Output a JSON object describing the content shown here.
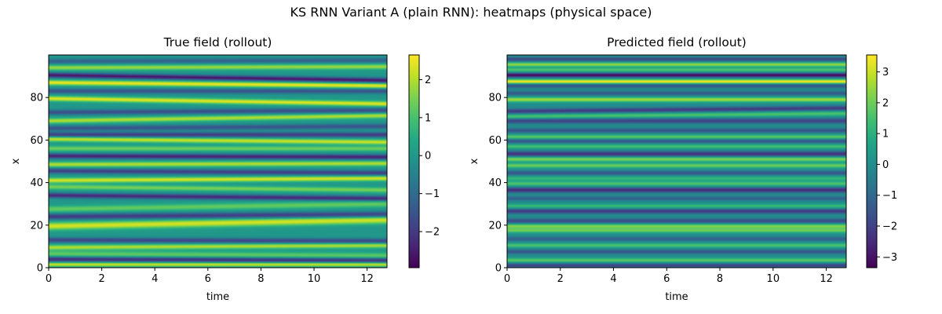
{
  "figure": {
    "suptitle": "KS RNN Variant A (plain RNN): heatmaps (physical space)"
  },
  "chart_data": [
    {
      "type": "heatmap",
      "title": "True field (rollout)",
      "xlabel": "time",
      "ylabel": "x",
      "xlim": [
        0,
        12.75
      ],
      "ylim": [
        0,
        100
      ],
      "xticks": [
        "0",
        "2",
        "4",
        "6",
        "8",
        "10",
        "12"
      ],
      "yticks": [
        "0",
        "20",
        "40",
        "60",
        "80"
      ],
      "colormap": "viridis",
      "colorbar": {
        "vmin": -2.95,
        "vmax": 2.65,
        "ticks": [
          "−2",
          "−1",
          "0",
          "1",
          "2"
        ]
      },
      "bands": [
        {
          "x0": 1.5,
          "x1": 1.5,
          "value": 2.2,
          "width": 1.0
        },
        {
          "x0": 4.0,
          "x1": 3.5,
          "value": -2.3,
          "width": 1.2
        },
        {
          "x0": 6.5,
          "x1": 5.5,
          "value": 1.3,
          "width": 1.5
        },
        {
          "x0": 9.5,
          "x1": 10.5,
          "value": 2.0,
          "width": 1.2
        },
        {
          "x0": 13.0,
          "x1": 12.5,
          "value": -1.8,
          "width": 1.2
        },
        {
          "x0": 19.5,
          "x1": 22.5,
          "value": 2.3,
          "width": 1.8
        },
        {
          "x0": 24.0,
          "x1": 25.0,
          "value": -2.0,
          "width": 1.4
        },
        {
          "x0": 27.5,
          "x1": 30.0,
          "value": 1.3,
          "width": 1.5
        },
        {
          "x0": 34.0,
          "x1": 32.5,
          "value": -2.3,
          "width": 1.2
        },
        {
          "x0": 38.0,
          "x1": 36.5,
          "value": 1.5,
          "width": 1.2
        },
        {
          "x0": 41.0,
          "x1": 42.0,
          "value": 2.3,
          "width": 1.2
        },
        {
          "x0": 45.5,
          "x1": 44.5,
          "value": -1.9,
          "width": 1.2
        },
        {
          "x0": 48.5,
          "x1": 49.0,
          "value": 2.0,
          "width": 1.2
        },
        {
          "x0": 52.5,
          "x1": 52.0,
          "value": -2.4,
          "width": 1.2
        },
        {
          "x0": 56.0,
          "x1": 56.0,
          "value": 1.4,
          "width": 1.2
        },
        {
          "x0": 60.5,
          "x1": 59.0,
          "value": 2.2,
          "width": 1.2
        },
        {
          "x0": 62.5,
          "x1": 62.5,
          "value": -2.0,
          "width": 1.2
        },
        {
          "x0": 65.5,
          "x1": 66.5,
          "value": -1.5,
          "width": 1.2
        },
        {
          "x0": 69.0,
          "x1": 71.5,
          "value": 2.0,
          "width": 1.2
        },
        {
          "x0": 73.0,
          "x1": 74.0,
          "value": -1.6,
          "width": 1.2
        },
        {
          "x0": 79.5,
          "x1": 77.0,
          "value": 2.4,
          "width": 1.2
        },
        {
          "x0": 83.0,
          "x1": 83.0,
          "value": -1.5,
          "width": 1.2
        },
        {
          "x0": 87.0,
          "x1": 85.5,
          "value": 2.5,
          "width": 1.2
        },
        {
          "x0": 90.5,
          "x1": 88.0,
          "value": -2.6,
          "width": 1.2
        },
        {
          "x0": 94.0,
          "x1": 94.5,
          "value": 1.8,
          "width": 1.2
        },
        {
          "x0": 97.0,
          "x1": 97.5,
          "value": -1.2,
          "width": 1.2
        }
      ]
    },
    {
      "type": "heatmap",
      "title": "Predicted field (rollout)",
      "xlabel": "time",
      "ylabel": "x",
      "xlim": [
        0,
        12.75
      ],
      "ylim": [
        0,
        100
      ],
      "xticks": [
        "0",
        "2",
        "4",
        "6",
        "8",
        "10",
        "12"
      ],
      "yticks": [
        "0",
        "20",
        "40",
        "60",
        "80"
      ],
      "colormap": "viridis",
      "colorbar": {
        "vmin": -3.35,
        "vmax": 3.55,
        "ticks": [
          "−3",
          "−2",
          "−1",
          "0",
          "1",
          "2",
          "3"
        ]
      },
      "bands": [
        {
          "x0": 1.0,
          "x1": 1.0,
          "value": -2.0,
          "width": 1.0
        },
        {
          "x0": 3.5,
          "x1": 3.5,
          "value": 1.8,
          "width": 1.0
        },
        {
          "x0": 7.5,
          "x1": 7.5,
          "value": -1.5,
          "width": 1.0
        },
        {
          "x0": 10.5,
          "x1": 10.5,
          "value": 1.6,
          "width": 1.0
        },
        {
          "x0": 13.5,
          "x1": 13.5,
          "value": -1.2,
          "width": 1.0
        },
        {
          "x0": 17.5,
          "x1": 17.5,
          "value": 2.0,
          "width": 1.1
        },
        {
          "x0": 19.5,
          "x1": 19.5,
          "value": 2.2,
          "width": 1.1
        },
        {
          "x0": 22.0,
          "x1": 22.0,
          "value": -1.8,
          "width": 1.1
        },
        {
          "x0": 26.5,
          "x1": 26.5,
          "value": -2.2,
          "width": 1.1
        },
        {
          "x0": 29.0,
          "x1": 29.0,
          "value": 1.3,
          "width": 1.0
        },
        {
          "x0": 32.5,
          "x1": 32.5,
          "value": -1.2,
          "width": 1.0
        },
        {
          "x0": 36.5,
          "x1": 36.5,
          "value": -2.5,
          "width": 1.2
        },
        {
          "x0": 39.5,
          "x1": 39.5,
          "value": 1.6,
          "width": 1.1
        },
        {
          "x0": 42.0,
          "x1": 42.0,
          "value": 1.2,
          "width": 1.0
        },
        {
          "x0": 44.5,
          "x1": 44.5,
          "value": -1.5,
          "width": 1.0
        },
        {
          "x0": 48.0,
          "x1": 48.0,
          "value": 2.0,
          "width": 1.1
        },
        {
          "x0": 51.0,
          "x1": 51.0,
          "value": 2.2,
          "width": 1.1
        },
        {
          "x0": 53.5,
          "x1": 53.5,
          "value": -2.4,
          "width": 1.2
        },
        {
          "x0": 57.0,
          "x1": 57.0,
          "value": 1.5,
          "width": 1.0
        },
        {
          "x0": 59.5,
          "x1": 59.5,
          "value": -1.5,
          "width": 1.0
        },
        {
          "x0": 61.5,
          "x1": 61.5,
          "value": 1.8,
          "width": 1.0
        },
        {
          "x0": 64.5,
          "x1": 64.5,
          "value": -1.6,
          "width": 1.0
        },
        {
          "x0": 69.0,
          "x1": 69.0,
          "value": -2.0,
          "width": 1.2
        },
        {
          "x0": 71.0,
          "x1": 72.5,
          "value": 1.6,
          "width": 1.1
        },
        {
          "x0": 73.5,
          "x1": 75.0,
          "value": -2.2,
          "width": 1.1
        },
        {
          "x0": 79.0,
          "x1": 79.0,
          "value": 2.6,
          "width": 1.1
        },
        {
          "x0": 82.0,
          "x1": 82.0,
          "value": -1.4,
          "width": 1.0
        },
        {
          "x0": 85.5,
          "x1": 85.5,
          "value": -1.6,
          "width": 1.0
        },
        {
          "x0": 87.5,
          "x1": 87.5,
          "value": 3.5,
          "width": 1.0
        },
        {
          "x0": 90.5,
          "x1": 90.5,
          "value": -3.2,
          "width": 1.0
        },
        {
          "x0": 93.0,
          "x1": 93.0,
          "value": 1.6,
          "width": 1.0
        },
        {
          "x0": 95.5,
          "x1": 95.5,
          "value": 2.4,
          "width": 1.0
        },
        {
          "x0": 98.0,
          "x1": 98.0,
          "value": -1.8,
          "width": 1.0
        }
      ]
    }
  ]
}
